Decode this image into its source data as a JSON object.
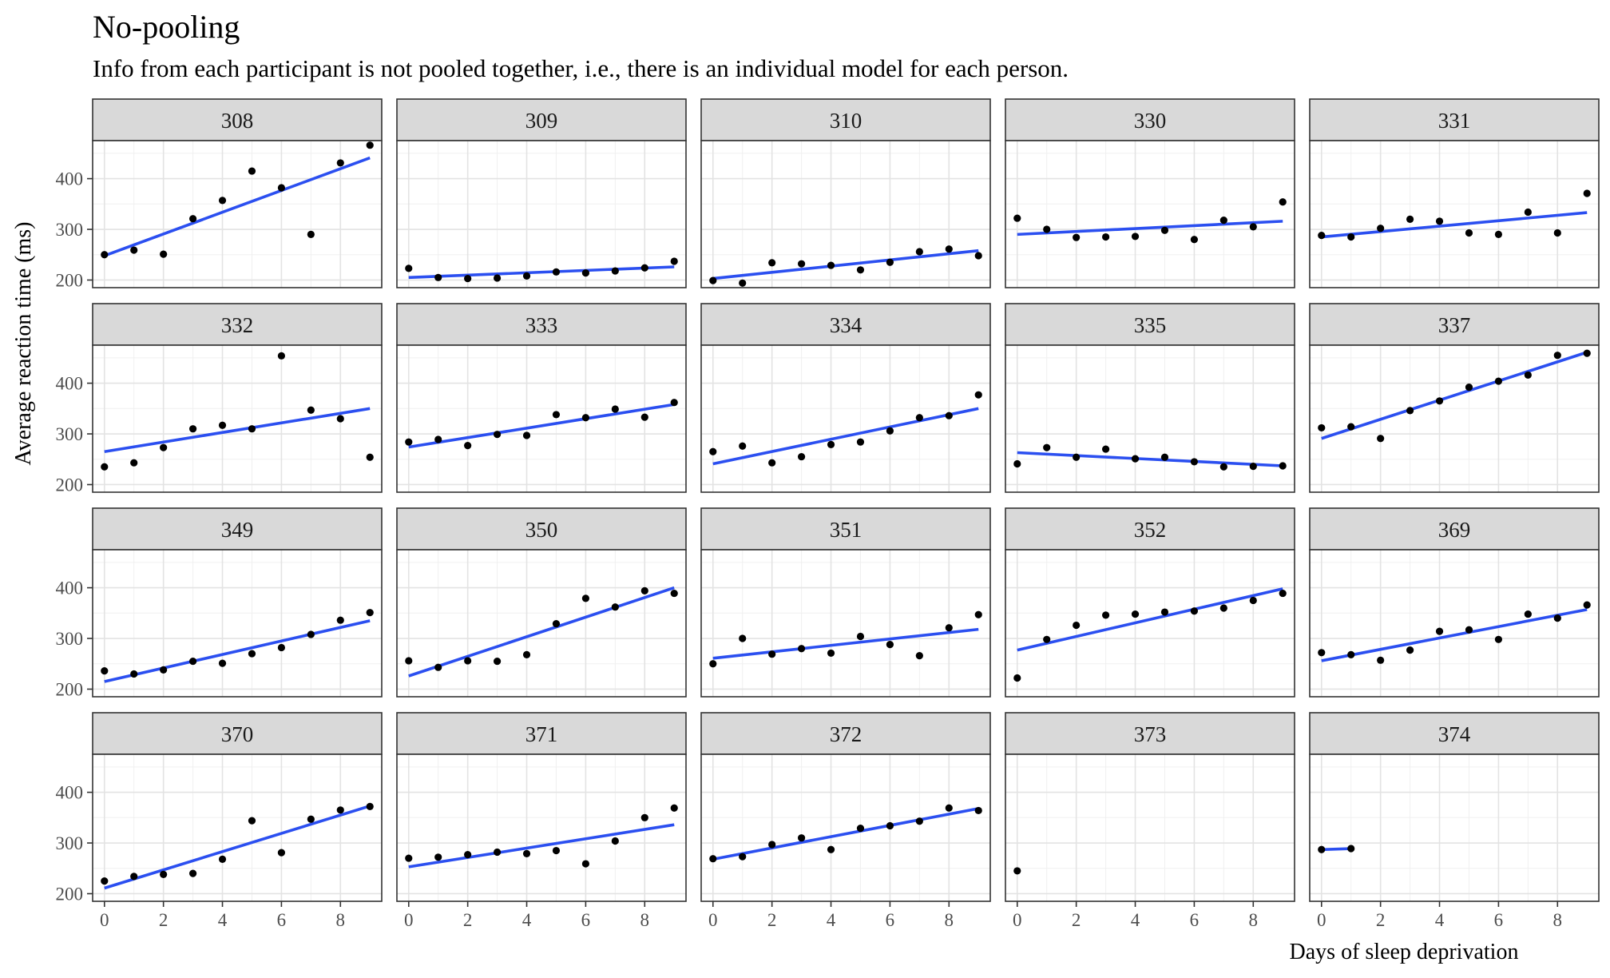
{
  "chart_data": {
    "type": "scatter",
    "title": "No-pooling",
    "subtitle": "Info from each participant is not pooled together, i.e., there is an individual model for each person.",
    "xlabel": "Days of sleep deprivation",
    "ylabel": "Average reaction time (ms)",
    "xlim": [
      -0.4,
      9.4
    ],
    "ylim": [
      185,
      475
    ],
    "x_ticks": [
      0,
      2,
      4,
      6,
      8
    ],
    "y_ticks": [
      200,
      300,
      400
    ],
    "grid": true,
    "point_color": "#000000",
    "line_color": "#2b4ff0",
    "strip_fill": "#d9d9d9",
    "panels": [
      {
        "label": "308",
        "points": [
          [
            0,
            250
          ],
          [
            1,
            259
          ],
          [
            2,
            251
          ],
          [
            3,
            321
          ],
          [
            4,
            357
          ],
          [
            5,
            415
          ],
          [
            6,
            382
          ],
          [
            7,
            290
          ],
          [
            8,
            431
          ],
          [
            9,
            466
          ]
        ],
        "fit": [
          [
            0,
            248
          ],
          [
            9,
            441
          ]
        ]
      },
      {
        "label": "309",
        "points": [
          [
            0,
            223
          ],
          [
            1,
            205
          ],
          [
            2,
            203
          ],
          [
            3,
            204
          ],
          [
            4,
            208
          ],
          [
            5,
            216
          ],
          [
            6,
            214
          ],
          [
            7,
            218
          ],
          [
            8,
            224
          ],
          [
            9,
            237
          ]
        ],
        "fit": [
          [
            0,
            205
          ],
          [
            9,
            226
          ]
        ]
      },
      {
        "label": "310",
        "points": [
          [
            0,
            199
          ],
          [
            1,
            194
          ],
          [
            2,
            234
          ],
          [
            3,
            232
          ],
          [
            4,
            229
          ],
          [
            5,
            220
          ],
          [
            6,
            235
          ],
          [
            7,
            256
          ],
          [
            8,
            261
          ],
          [
            9,
            248
          ]
        ],
        "fit": [
          [
            0,
            203
          ],
          [
            9,
            258
          ]
        ]
      },
      {
        "label": "330",
        "points": [
          [
            0,
            322
          ],
          [
            1,
            300
          ],
          [
            2,
            284
          ],
          [
            3,
            285
          ],
          [
            4,
            286
          ],
          [
            5,
            298
          ],
          [
            6,
            280
          ],
          [
            7,
            318
          ],
          [
            8,
            305
          ],
          [
            9,
            354
          ]
        ],
        "fit": [
          [
            0,
            290
          ],
          [
            9,
            316
          ]
        ]
      },
      {
        "label": "331",
        "points": [
          [
            0,
            288
          ],
          [
            1,
            285
          ],
          [
            2,
            302
          ],
          [
            3,
            320
          ],
          [
            4,
            316
          ],
          [
            5,
            293
          ],
          [
            6,
            290
          ],
          [
            7,
            334
          ],
          [
            8,
            293
          ],
          [
            9,
            371
          ]
        ],
        "fit": [
          [
            0,
            285
          ],
          [
            9,
            333
          ]
        ]
      },
      {
        "label": "332",
        "points": [
          [
            0,
            235
          ],
          [
            1,
            243
          ],
          [
            2,
            273
          ],
          [
            3,
            310
          ],
          [
            4,
            317
          ],
          [
            5,
            310
          ],
          [
            6,
            454
          ],
          [
            7,
            347
          ],
          [
            8,
            330
          ],
          [
            9,
            254
          ]
        ],
        "fit": [
          [
            0,
            265
          ],
          [
            9,
            350
          ]
        ]
      },
      {
        "label": "333",
        "points": [
          [
            0,
            284
          ],
          [
            1,
            289
          ],
          [
            2,
            277
          ],
          [
            3,
            299
          ],
          [
            4,
            297
          ],
          [
            5,
            338
          ],
          [
            6,
            332
          ],
          [
            7,
            349
          ],
          [
            8,
            333
          ],
          [
            9,
            362
          ]
        ],
        "fit": [
          [
            0,
            274
          ],
          [
            9,
            358
          ]
        ]
      },
      {
        "label": "334",
        "points": [
          [
            0,
            265
          ],
          [
            1,
            276
          ],
          [
            2,
            243
          ],
          [
            3,
            255
          ],
          [
            4,
            279
          ],
          [
            5,
            284
          ],
          [
            6,
            306
          ],
          [
            7,
            332
          ],
          [
            8,
            336
          ],
          [
            9,
            377
          ]
        ],
        "fit": [
          [
            0,
            241
          ],
          [
            9,
            350
          ]
        ]
      },
      {
        "label": "335",
        "points": [
          [
            0,
            241
          ],
          [
            1,
            273
          ],
          [
            2,
            254
          ],
          [
            3,
            270
          ],
          [
            4,
            251
          ],
          [
            5,
            254
          ],
          [
            6,
            245
          ],
          [
            7,
            235
          ],
          [
            8,
            236
          ],
          [
            9,
            237
          ]
        ],
        "fit": [
          [
            0,
            263
          ],
          [
            9,
            237
          ]
        ]
      },
      {
        "label": "337",
        "points": [
          [
            0,
            312
          ],
          [
            1,
            314
          ],
          [
            2,
            291
          ],
          [
            3,
            346
          ],
          [
            4,
            365
          ],
          [
            5,
            392
          ],
          [
            6,
            404
          ],
          [
            7,
            416
          ],
          [
            8,
            455
          ],
          [
            9,
            459
          ]
        ],
        "fit": [
          [
            0,
            291
          ],
          [
            9,
            461
          ]
        ]
      },
      {
        "label": "349",
        "points": [
          [
            0,
            236
          ],
          [
            1,
            230
          ],
          [
            2,
            238
          ],
          [
            3,
            255
          ],
          [
            4,
            251
          ],
          [
            5,
            270
          ],
          [
            6,
            282
          ],
          [
            7,
            308
          ],
          [
            8,
            336
          ],
          [
            9,
            351
          ]
        ],
        "fit": [
          [
            0,
            215
          ],
          [
            9,
            335
          ]
        ]
      },
      {
        "label": "350",
        "points": [
          [
            0,
            256
          ],
          [
            1,
            243
          ],
          [
            2,
            256
          ],
          [
            3,
            255
          ],
          [
            4,
            268
          ],
          [
            5,
            329
          ],
          [
            6,
            379
          ],
          [
            7,
            362
          ],
          [
            8,
            394
          ],
          [
            9,
            389
          ]
        ],
        "fit": [
          [
            0,
            226
          ],
          [
            9,
            400
          ]
        ]
      },
      {
        "label": "351",
        "points": [
          [
            0,
            250
          ],
          [
            1,
            300
          ],
          [
            2,
            269
          ],
          [
            3,
            280
          ],
          [
            4,
            271
          ],
          [
            5,
            304
          ],
          [
            6,
            288
          ],
          [
            7,
            266
          ],
          [
            8,
            321
          ],
          [
            9,
            347
          ]
        ],
        "fit": [
          [
            0,
            261
          ],
          [
            9,
            318
          ]
        ]
      },
      {
        "label": "352",
        "points": [
          [
            0,
            222
          ],
          [
            1,
            298
          ],
          [
            2,
            326
          ],
          [
            3,
            346
          ],
          [
            4,
            348
          ],
          [
            5,
            352
          ],
          [
            6,
            354
          ],
          [
            7,
            360
          ],
          [
            8,
            375
          ],
          [
            9,
            389
          ]
        ],
        "fit": [
          [
            0,
            277
          ],
          [
            9,
            398
          ]
        ]
      },
      {
        "label": "369",
        "points": [
          [
            0,
            272
          ],
          [
            1,
            268
          ],
          [
            2,
            257
          ],
          [
            3,
            277
          ],
          [
            4,
            314
          ],
          [
            5,
            317
          ],
          [
            6,
            298
          ],
          [
            7,
            348
          ],
          [
            8,
            340
          ],
          [
            9,
            366
          ]
        ],
        "fit": [
          [
            0,
            256
          ],
          [
            9,
            357
          ]
        ]
      },
      {
        "label": "370",
        "points": [
          [
            0,
            225
          ],
          [
            1,
            234
          ],
          [
            2,
            238
          ],
          [
            3,
            240
          ],
          [
            4,
            268
          ],
          [
            5,
            344
          ],
          [
            6,
            281
          ],
          [
            7,
            347
          ],
          [
            8,
            365
          ],
          [
            9,
            372
          ]
        ],
        "fit": [
          [
            0,
            211
          ],
          [
            9,
            373
          ]
        ]
      },
      {
        "label": "371",
        "points": [
          [
            0,
            270
          ],
          [
            1,
            272
          ],
          [
            2,
            277
          ],
          [
            3,
            282
          ],
          [
            4,
            279
          ],
          [
            5,
            285
          ],
          [
            6,
            259
          ],
          [
            7,
            304
          ],
          [
            8,
            350
          ],
          [
            9,
            369
          ]
        ],
        "fit": [
          [
            0,
            253
          ],
          [
            9,
            336
          ]
        ]
      },
      {
        "label": "372",
        "points": [
          [
            0,
            269
          ],
          [
            1,
            273
          ],
          [
            2,
            297
          ],
          [
            3,
            310
          ],
          [
            4,
            287
          ],
          [
            5,
            329
          ],
          [
            6,
            334
          ],
          [
            7,
            343
          ],
          [
            8,
            369
          ],
          [
            9,
            364
          ]
        ],
        "fit": [
          [
            0,
            268
          ],
          [
            9,
            368
          ]
        ]
      },
      {
        "label": "373",
        "points": [
          [
            0,
            245
          ]
        ],
        "fit": []
      },
      {
        "label": "374",
        "points": [
          [
            0,
            287
          ],
          [
            1,
            289
          ]
        ],
        "fit": [
          [
            0,
            287
          ],
          [
            1,
            289
          ]
        ]
      }
    ]
  }
}
